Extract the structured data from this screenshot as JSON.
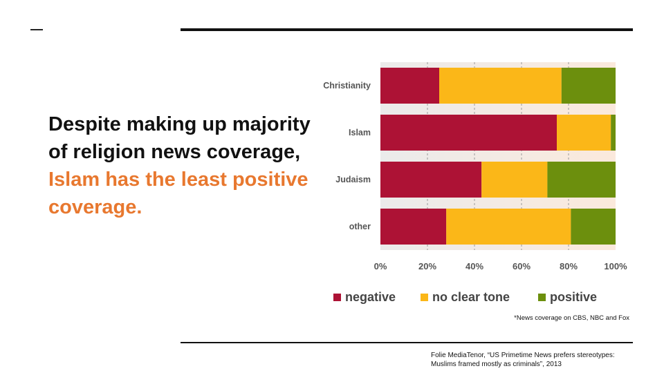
{
  "headline": {
    "part1": "Despite making up majority of religion news coverage, ",
    "part2": "Islam has the least positive coverage."
  },
  "footnote": "*News coverage on CBS, NBC and Fox",
  "source": "Folie MediaTenor, “US Primetime News prefers stereotypes: Muslims framed mostly as criminals”, 2013",
  "colors": {
    "negative": "#ad1235",
    "no_clear_tone": "#fbb718",
    "positive": "#6c8f0d",
    "accent": "#e8782f"
  },
  "chart_data": {
    "type": "bar",
    "orientation": "horizontal",
    "stacked": true,
    "categories": [
      "Christianity",
      "Islam",
      "Judaism",
      "other"
    ],
    "series": [
      {
        "name": "negative",
        "values": [
          25,
          75,
          43,
          28
        ]
      },
      {
        "name": "no clear tone",
        "values": [
          52,
          23,
          28,
          53
        ]
      },
      {
        "name": "positive",
        "values": [
          23,
          2,
          29,
          19
        ]
      }
    ],
    "xlim": [
      0,
      100
    ],
    "xticks": [
      "0%",
      "20%",
      "40%",
      "60%",
      "80%",
      "100%"
    ],
    "grid": true,
    "legend_position": "bottom"
  }
}
